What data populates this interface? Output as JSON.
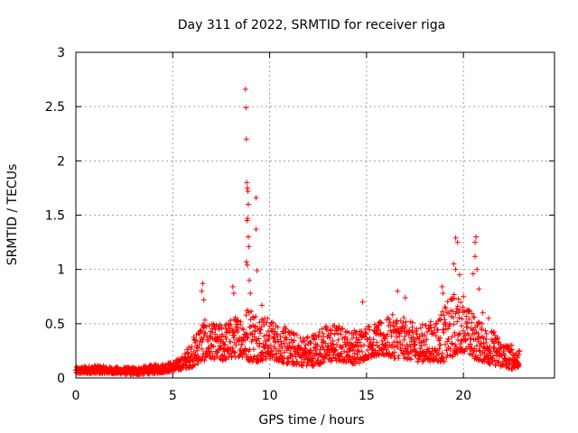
{
  "chart_data": {
    "type": "scatter",
    "title": "Day 311 of 2022, SRMTID for receiver riga",
    "xlabel": "GPS time / hours",
    "ylabel": "SRMTID / TECUs",
    "xlim": [
      0,
      24.7
    ],
    "ylim": [
      0,
      3
    ],
    "x_ticks": [
      0,
      5,
      10,
      15,
      20
    ],
    "x_tick_labels": [
      "0",
      "5",
      "10",
      "15",
      "20"
    ],
    "y_ticks": [
      0,
      0.5,
      1,
      1.5,
      2,
      2.5,
      3
    ],
    "y_tick_labels": [
      "0",
      "0.5",
      "1",
      "1.5",
      "2",
      "2.5",
      "3"
    ],
    "grid": true,
    "marker": "+",
    "series": [
      {
        "name": "SRMTID",
        "color": "#ff0000",
        "envelope_hours": [
          0,
          1,
          2,
          3,
          4,
          5,
          5.5,
          6,
          6.5,
          7,
          7.5,
          8,
          8.5,
          9,
          9.5,
          10,
          10.5,
          11,
          11.5,
          12,
          12.5,
          13,
          13.5,
          14,
          14.5,
          15,
          15.5,
          16,
          16.5,
          17,
          17.5,
          18,
          18.5,
          19,
          19.5,
          20,
          20.5,
          21,
          21.5,
          22,
          22.5,
          22.9
        ],
        "envelope_low": [
          0.04,
          0.04,
          0.04,
          0.03,
          0.04,
          0.06,
          0.08,
          0.1,
          0.15,
          0.18,
          0.15,
          0.18,
          0.2,
          0.15,
          0.15,
          0.18,
          0.15,
          0.12,
          0.12,
          0.1,
          0.12,
          0.15,
          0.15,
          0.15,
          0.12,
          0.18,
          0.2,
          0.2,
          0.18,
          0.18,
          0.15,
          0.15,
          0.15,
          0.15,
          0.2,
          0.25,
          0.18,
          0.15,
          0.12,
          0.1,
          0.08,
          0.1
        ],
        "envelope_high": [
          0.1,
          0.12,
          0.1,
          0.1,
          0.12,
          0.15,
          0.2,
          0.35,
          0.55,
          0.5,
          0.5,
          0.55,
          0.6,
          0.7,
          0.6,
          0.55,
          0.5,
          0.45,
          0.4,
          0.4,
          0.45,
          0.5,
          0.5,
          0.45,
          0.45,
          0.5,
          0.5,
          0.55,
          0.6,
          0.55,
          0.5,
          0.5,
          0.55,
          0.65,
          0.8,
          0.7,
          0.6,
          0.5,
          0.45,
          0.35,
          0.3,
          0.25
        ],
        "outliers": [
          {
            "x": 8.75,
            "y": 2.66
          },
          {
            "x": 8.78,
            "y": 2.49
          },
          {
            "x": 8.8,
            "y": 2.2
          },
          {
            "x": 8.82,
            "y": 1.8
          },
          {
            "x": 8.85,
            "y": 1.75
          },
          {
            "x": 8.88,
            "y": 1.72
          },
          {
            "x": 8.9,
            "y": 1.6
          },
          {
            "x": 8.86,
            "y": 1.47
          },
          {
            "x": 8.83,
            "y": 1.45
          },
          {
            "x": 8.9,
            "y": 1.3
          },
          {
            "x": 8.93,
            "y": 1.21
          },
          {
            "x": 8.8,
            "y": 1.07
          },
          {
            "x": 8.85,
            "y": 1.04
          },
          {
            "x": 8.95,
            "y": 0.9
          },
          {
            "x": 9.0,
            "y": 0.78
          },
          {
            "x": 9.3,
            "y": 1.66
          },
          {
            "x": 9.3,
            "y": 1.37
          },
          {
            "x": 9.35,
            "y": 0.99
          },
          {
            "x": 6.55,
            "y": 0.87
          },
          {
            "x": 6.5,
            "y": 0.8
          },
          {
            "x": 6.6,
            "y": 0.72
          },
          {
            "x": 8.1,
            "y": 0.84
          },
          {
            "x": 8.15,
            "y": 0.78
          },
          {
            "x": 9.6,
            "y": 0.67
          },
          {
            "x": 16.6,
            "y": 0.8
          },
          {
            "x": 17.0,
            "y": 0.74
          },
          {
            "x": 14.8,
            "y": 0.7
          },
          {
            "x": 19.6,
            "y": 1.29
          },
          {
            "x": 19.7,
            "y": 1.25
          },
          {
            "x": 20.65,
            "y": 1.3
          },
          {
            "x": 20.6,
            "y": 1.25
          },
          {
            "x": 20.6,
            "y": 1.12
          },
          {
            "x": 19.5,
            "y": 1.05
          },
          {
            "x": 19.6,
            "y": 1.0
          },
          {
            "x": 20.7,
            "y": 1.0
          },
          {
            "x": 18.9,
            "y": 0.84
          },
          {
            "x": 18.95,
            "y": 0.78
          },
          {
            "x": 19.8,
            "y": 0.95
          },
          {
            "x": 20.5,
            "y": 0.96
          },
          {
            "x": 20.0,
            "y": 0.75
          },
          {
            "x": 20.8,
            "y": 0.82
          },
          {
            "x": 19.4,
            "y": 0.72
          },
          {
            "x": 21.3,
            "y": 0.55
          },
          {
            "x": 21.0,
            "y": 0.6
          },
          {
            "x": 22.5,
            "y": 0.3
          }
        ]
      }
    ]
  }
}
